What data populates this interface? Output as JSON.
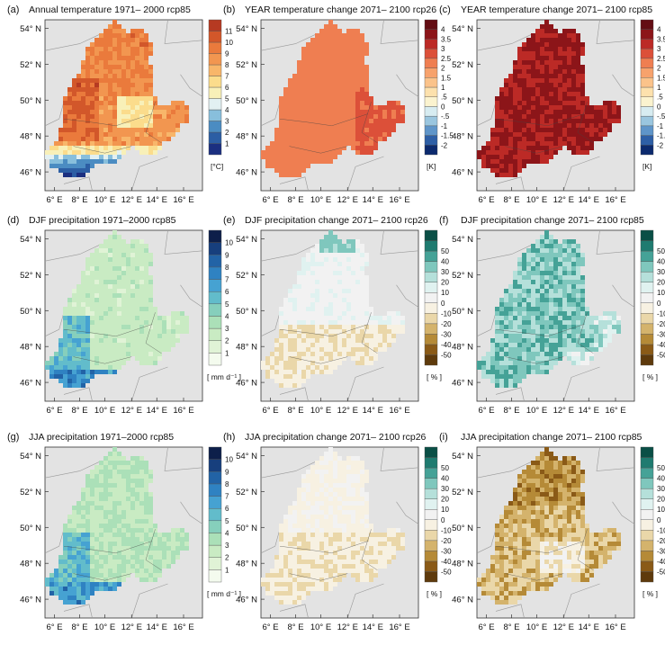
{
  "chart_data": [
    {
      "type": "heatmap",
      "panel_letter": "(a)",
      "title": "Annual temperature  1971– 2000  rcp85",
      "legend_unit": "[°C]",
      "legend_labels": [
        "1",
        "2",
        "3",
        "4",
        "5",
        "6",
        "7",
        "8",
        "9",
        "10",
        "11"
      ],
      "legend_colors": [
        "#1b2f80",
        "#2c5ea4",
        "#4b8cc2",
        "#88bfdc",
        "#e2f0f2",
        "#f8f0b8",
        "#fbdc8c",
        "#f8b66a",
        "#f29650",
        "#ea7a3c",
        "#d2572a",
        "#b63a22"
      ],
      "x_ticks": [
        "6° E",
        "8° E",
        "10° E",
        "12° E",
        "14° E",
        "16° E"
      ],
      "y_ticks": [
        "54° N",
        "52° N",
        "50° N",
        "48° N",
        "46° N"
      ],
      "dominant": "7–10 °C lowlands, below 3 °C along southern Alps"
    },
    {
      "type": "heatmap",
      "panel_letter": "(b)",
      "title": "YEAR temperature change 2071– 2100 rcp26",
      "legend_unit": "[K]",
      "legend_labels": [
        "-2",
        "-1.5",
        "-1",
        "-.5",
        "0",
        ".5",
        "1",
        "1.5",
        "2",
        "2.5",
        "3",
        "3.5",
        "4"
      ],
      "legend_colors": [
        "#0c2a6e",
        "#2e5fa6",
        "#5f95c9",
        "#9ac6df",
        "#d7ecf1",
        "#fbf3cf",
        "#fde1ad",
        "#fbc38a",
        "#f7a26c",
        "#ef7e51",
        "#dc5039",
        "#bc2a26",
        "#8c1519",
        "#640d14"
      ],
      "x_ticks": [
        "6° E",
        "8° E",
        "10° E",
        "12° E",
        "14° E",
        "16° E"
      ],
      "y_ticks": [
        "54° N",
        "52° N",
        "50° N",
        "48° N",
        "46° N"
      ],
      "dominant": "+1 to +2 K"
    },
    {
      "type": "heatmap",
      "panel_letter": "(c)",
      "title": "YEAR temperature change 2071– 2100 rcp85",
      "legend_unit": "[K]",
      "legend_labels": [
        "-2",
        "-1.5",
        "-1",
        "-.5",
        "0",
        ".5",
        "1",
        "1.5",
        "2",
        "2.5",
        "3",
        "3.5",
        "4"
      ],
      "legend_colors": [
        "#0c2a6e",
        "#2e5fa6",
        "#5f95c9",
        "#9ac6df",
        "#d7ecf1",
        "#fbf3cf",
        "#fde1ad",
        "#fbc38a",
        "#f7a26c",
        "#ef7e51",
        "#dc5039",
        "#bc2a26",
        "#8c1519",
        "#640d14"
      ],
      "x_ticks": [
        "6° E",
        "8° E",
        "10° E",
        "12° E",
        "14° E",
        "16° E"
      ],
      "y_ticks": [
        "54° N",
        "52° N",
        "50° N",
        "48° N",
        "46° N"
      ],
      "dominant": "+3.5 to +4 K"
    },
    {
      "type": "heatmap",
      "panel_letter": "(d)",
      "title": "DJF precipitation 1971–2000 rcp85",
      "legend_unit": "[ mm d⁻¹ ]",
      "legend_labels": [
        "1",
        "2",
        "3",
        "4",
        "5",
        "6",
        "7",
        "8",
        "9",
        "10"
      ],
      "legend_colors": [
        "#f4fbee",
        "#e0f3d6",
        "#c9ebc3",
        "#abe0b8",
        "#86cfbc",
        "#62bccb",
        "#46a2d2",
        "#2f82c2",
        "#2263a6",
        "#173f7d",
        "#0d1f4a"
      ],
      "x_ticks": [
        "6° E",
        "8° E",
        "10° E",
        "12° E",
        "14° E",
        "16° E"
      ],
      "y_ticks": [
        "54° N",
        "52° N",
        "50° N",
        "48° N",
        "46° N"
      ],
      "dominant": "1–3 mm/d, up to 7 mm/d in the Alps and Black Forest"
    },
    {
      "type": "heatmap",
      "panel_letter": "(e)",
      "title": "DJF precipitation change 2071– 2100 rcp26",
      "legend_unit": "[ % ]",
      "legend_labels": [
        "-50",
        "-40",
        "-30",
        "-20",
        "-10",
        "0",
        "10",
        "20",
        "30",
        "40",
        "50"
      ],
      "legend_colors": [
        "#5e3a0c",
        "#8a5a17",
        "#b58a37",
        "#d4b36c",
        "#ead7a9",
        "#f7f1e2",
        "#f2f2f2",
        "#e0f2f0",
        "#b5e0da",
        "#7fc7bd",
        "#45a297",
        "#1f7b70",
        "#0a4f46"
      ],
      "x_ticks": [
        "6° E",
        "8° E",
        "10° E",
        "12° E",
        "14° E",
        "16° E"
      ],
      "y_ticks": [
        "54° N",
        "52° N",
        "50° N",
        "48° N",
        "46° N"
      ],
      "dominant": "-10 to +10 %, slight drying in the south"
    },
    {
      "type": "heatmap",
      "panel_letter": "(f)",
      "title": "DJF precipitation change 2071– 2100 rcp85",
      "legend_unit": "[ % ]",
      "legend_labels": [
        "-50",
        "-40",
        "-30",
        "-20",
        "-10",
        "0",
        "10",
        "20",
        "30",
        "40",
        "50"
      ],
      "legend_colors": [
        "#5e3a0c",
        "#8a5a17",
        "#b58a37",
        "#d4b36c",
        "#ead7a9",
        "#f7f1e2",
        "#f2f2f2",
        "#e0f2f0",
        "#b5e0da",
        "#7fc7bd",
        "#45a297",
        "#1f7b70",
        "#0a4f46"
      ],
      "x_ticks": [
        "6° E",
        "8° E",
        "10° E",
        "12° E",
        "14° E",
        "16° E"
      ],
      "y_ticks": [
        "54° N",
        "52° N",
        "50° N",
        "48° N",
        "46° N"
      ],
      "dominant": "+10 to +40 %"
    },
    {
      "type": "heatmap",
      "panel_letter": "(g)",
      "title": "JJA precipitation 1971–2000 rcp85",
      "legend_unit": "[ mm d⁻¹ ]",
      "legend_labels": [
        "1",
        "2",
        "3",
        "4",
        "5",
        "6",
        "7",
        "8",
        "9",
        "10"
      ],
      "legend_colors": [
        "#f4fbee",
        "#e0f3d6",
        "#c9ebc3",
        "#abe0b8",
        "#86cfbc",
        "#62bccb",
        "#46a2d2",
        "#2f82c2",
        "#2263a6",
        "#173f7d",
        "#0d1f4a"
      ],
      "x_ticks": [
        "6° E",
        "8° E",
        "10° E",
        "12° E",
        "14° E",
        "16° E"
      ],
      "y_ticks": [
        "54° N",
        "52° N",
        "50° N",
        "48° N",
        "46° N"
      ],
      "dominant": "2–4 mm/d, up to 8 mm/d in the Alps"
    },
    {
      "type": "heatmap",
      "panel_letter": "(h)",
      "title": "JJA precipitation change 2071– 2100 rcp26",
      "legend_unit": "[ % ]",
      "legend_labels": [
        "-50",
        "-40",
        "-30",
        "-20",
        "-10",
        "0",
        "10",
        "20",
        "30",
        "40",
        "50"
      ],
      "legend_colors": [
        "#5e3a0c",
        "#8a5a17",
        "#b58a37",
        "#d4b36c",
        "#ead7a9",
        "#f7f1e2",
        "#f2f2f2",
        "#e0f2f0",
        "#b5e0da",
        "#7fc7bd",
        "#45a297",
        "#1f7b70",
        "#0a4f46"
      ],
      "x_ticks": [
        "6° E",
        "8° E",
        "10° E",
        "12° E",
        "14° E",
        "16° E"
      ],
      "y_ticks": [
        "54° N",
        "52° N",
        "50° N",
        "48° N",
        "46° N"
      ],
      "dominant": "-10 to 0 %"
    },
    {
      "type": "heatmap",
      "panel_letter": "(i)",
      "title": "JJA precipitation change 2071– 2100 rcp85",
      "legend_unit": "[ % ]",
      "legend_labels": [
        "-50",
        "-40",
        "-30",
        "-20",
        "-10",
        "0",
        "10",
        "20",
        "30",
        "40",
        "50"
      ],
      "legend_colors": [
        "#5e3a0c",
        "#8a5a17",
        "#b58a37",
        "#d4b36c",
        "#ead7a9",
        "#f7f1e2",
        "#f2f2f2",
        "#e0f2f0",
        "#b5e0da",
        "#7fc7bd",
        "#45a297",
        "#1f7b70",
        "#0a4f46"
      ],
      "x_ticks": [
        "6° E",
        "8° E",
        "10° E",
        "12° E",
        "14° E",
        "16° E"
      ],
      "y_ticks": [
        "54° N",
        "52° N",
        "50° N",
        "48° N",
        "46° N"
      ],
      "dominant": "-10 to -40 %, strongest drying in the north and southwest"
    }
  ]
}
